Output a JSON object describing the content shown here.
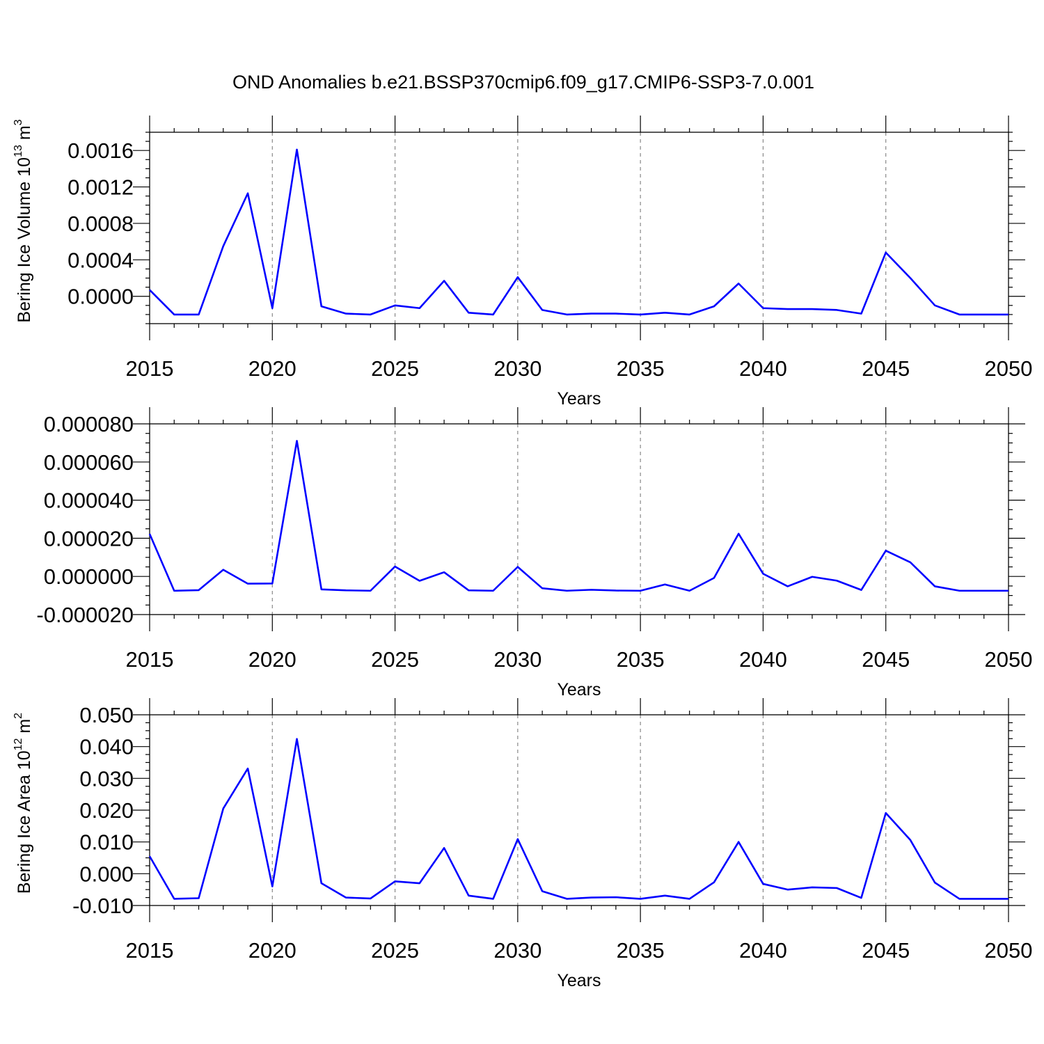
{
  "title": "OND Anomalies b.e21.BSSP370cmip6.f09_g17.CMIP6-SSP3-7.0.001",
  "colors": {
    "line": "#0000ff",
    "grid": "#888888",
    "frame": "#000000"
  },
  "chart_data": [
    {
      "type": "line",
      "title": "",
      "xlabel": "Years",
      "ylabel": "Bering Ice Volume 10",
      "ylabel_exp": "13",
      "ylabel_unit": " m",
      "ylabel_unit_exp": "3",
      "xlim": [
        2015,
        2050
      ],
      "ylim": [
        -0.0003,
        0.0018
      ],
      "xticks": [
        2015,
        2020,
        2025,
        2030,
        2035,
        2040,
        2045,
        2050
      ],
      "xtick_labels": [
        "2015",
        "2020",
        "2025",
        "2030",
        "2035",
        "2040",
        "2045",
        "2050"
      ],
      "yticks": [
        0.0,
        0.0004,
        0.0008,
        0.0012,
        0.0016
      ],
      "ytick_labels": [
        "0.0000",
        "0.0004",
        "0.0008",
        "0.0012",
        "0.0016"
      ],
      "x_minor_step": 1,
      "y_minor_step": 0.0001,
      "grid": "x-dashed",
      "x": [
        2015,
        2016,
        2017,
        2018,
        2019,
        2020,
        2021,
        2022,
        2023,
        2024,
        2025,
        2026,
        2027,
        2028,
        2029,
        2030,
        2031,
        2032,
        2033,
        2034,
        2035,
        2036,
        2037,
        2038,
        2039,
        2040,
        2041,
        2042,
        2043,
        2044,
        2045,
        2046,
        2047,
        2048,
        2049,
        2050
      ],
      "series": [
        {
          "values": [
            7e-05,
            -0.0002,
            -0.0002,
            0.00055,
            0.00113,
            -0.00013,
            0.00161,
            -0.00011,
            -0.00019,
            -0.0002,
            -0.0001,
            -0.00013,
            0.00017,
            -0.00018,
            -0.0002,
            0.00021,
            -0.00015,
            -0.0002,
            -0.00019,
            -0.00019,
            -0.0002,
            -0.00018,
            -0.0002,
            -0.00011,
            0.00014,
            -0.00013,
            -0.00014,
            -0.00014,
            -0.00015,
            -0.00019,
            0.00048,
            0.0002,
            -0.0001,
            -0.0002,
            -0.0002,
            -0.0002
          ]
        }
      ]
    },
    {
      "type": "line",
      "title": "",
      "xlabel": "Years",
      "ylabel": "",
      "xlim": [
        2015,
        2050
      ],
      "ylim": [
        -2e-05,
        8e-05
      ],
      "xticks": [
        2015,
        2020,
        2025,
        2030,
        2035,
        2040,
        2045,
        2050
      ],
      "xtick_labels": [
        "2015",
        "2020",
        "2025",
        "2030",
        "2035",
        "2040",
        "2045",
        "2050"
      ],
      "yticks": [
        -2e-05,
        0.0,
        2e-05,
        4e-05,
        6e-05,
        8e-05
      ],
      "ytick_labels": [
        "-0.000020",
        "0.000000",
        "0.000020",
        "0.000040",
        "0.000060",
        "0.000080"
      ],
      "x_minor_step": 1,
      "y_minor_step": 5e-06,
      "grid": "x-dashed",
      "x": [
        2015,
        2016,
        2017,
        2018,
        2019,
        2020,
        2021,
        2022,
        2023,
        2024,
        2025,
        2026,
        2027,
        2028,
        2029,
        2030,
        2031,
        2032,
        2033,
        2034,
        2035,
        2036,
        2037,
        2038,
        2039,
        2040,
        2041,
        2042,
        2043,
        2044,
        2045,
        2046,
        2047,
        2048,
        2049,
        2050
      ],
      "series": [
        {
          "values": [
            2.23e-05,
            -7.5e-06,
            -7.2e-06,
            3.5e-06,
            -3.8e-06,
            -3.7e-06,
            7.11e-05,
            -6.8e-06,
            -7.3e-06,
            -7.5e-06,
            5.2e-06,
            -2.3e-06,
            2.2e-06,
            -7.3e-06,
            -7.5e-06,
            5e-06,
            -6.2e-06,
            -7.5e-06,
            -7e-06,
            -7.4e-06,
            -7.5e-06,
            -4.2e-06,
            -7.5e-06,
            -8e-07,
            2.24e-05,
            1.4e-06,
            -5.2e-06,
            -2e-07,
            -2.2e-06,
            -7.1e-06,
            1.35e-05,
            7.4e-06,
            -5.2e-06,
            -7.5e-06,
            -7.5e-06,
            -7.5e-06
          ]
        }
      ]
    },
    {
      "type": "line",
      "title": "",
      "xlabel": "Years",
      "ylabel": "Bering Ice Area 10",
      "ylabel_exp": "12",
      "ylabel_unit": " m",
      "ylabel_unit_exp": "2",
      "xlim": [
        2015,
        2050
      ],
      "ylim": [
        -0.01,
        0.05
      ],
      "xticks": [
        2015,
        2020,
        2025,
        2030,
        2035,
        2040,
        2045,
        2050
      ],
      "xtick_labels": [
        "2015",
        "2020",
        "2025",
        "2030",
        "2035",
        "2040",
        "2045",
        "2050"
      ],
      "yticks": [
        -0.01,
        0.0,
        0.01,
        0.02,
        0.03,
        0.04,
        0.05
      ],
      "ytick_labels": [
        "-0.010",
        "0.000",
        "0.010",
        "0.020",
        "0.030",
        "0.040",
        "0.050"
      ],
      "x_minor_step": 1,
      "y_minor_step": 0.0025,
      "grid": "x-dashed",
      "x": [
        2015,
        2016,
        2017,
        2018,
        2019,
        2020,
        2021,
        2022,
        2023,
        2024,
        2025,
        2026,
        2027,
        2028,
        2029,
        2030,
        2031,
        2032,
        2033,
        2034,
        2035,
        2036,
        2037,
        2038,
        2039,
        2040,
        2041,
        2042,
        2043,
        2044,
        2045,
        2046,
        2047,
        2048,
        2049,
        2050
      ],
      "series": [
        {
          "values": [
            0.0055,
            -0.0079,
            -0.0077,
            0.0205,
            0.0331,
            -0.004,
            0.0424,
            -0.003,
            -0.0075,
            -0.0078,
            -0.0024,
            -0.003,
            0.0081,
            -0.0069,
            -0.0079,
            0.0109,
            -0.0055,
            -0.0079,
            -0.0075,
            -0.0074,
            -0.0079,
            -0.0069,
            -0.0079,
            -0.0027,
            0.01,
            -0.0032,
            -0.005,
            -0.0043,
            -0.0045,
            -0.0076,
            0.0191,
            0.0106,
            -0.0028,
            -0.0079,
            -0.0079,
            -0.0079
          ]
        }
      ]
    }
  ]
}
